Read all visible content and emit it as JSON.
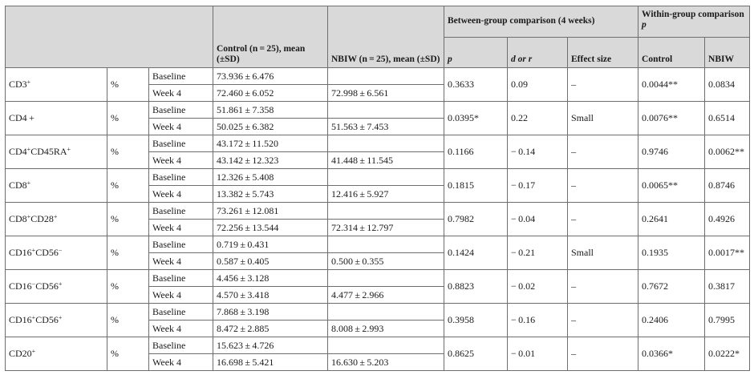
{
  "header": {
    "control": "Control (n = 25), mean (±SD)",
    "nbiw": "NBIW (n = 25), mean (±SD)",
    "between": "Between-group comparison (4 weeks)",
    "within": "Within-group comparison",
    "p": "p",
    "d_or": "d or",
    "r": "r",
    "effect_size": "Effect size",
    "within_p": "p",
    "within_control": "Control",
    "within_nbiw": "NBIW"
  },
  "rows": [
    {
      "marker": "CD3",
      "marker_sup": "+",
      "unit": "%",
      "baseline_label": "Baseline",
      "week4_label": "Week 4",
      "control_baseline": "73.936 ± 6.476",
      "control_week4": "72.460 ± 6.052",
      "nbiw_week4": "72.998 ± 6.561",
      "p": "0.3633",
      "d": "0.09",
      "effect": "–",
      "within_control": "0.0044**",
      "within_nbiw": "0.0834"
    },
    {
      "marker": "CD4 +",
      "marker_sup": "",
      "unit": "%",
      "baseline_label": "Baseline",
      "week4_label": "Week 4",
      "control_baseline": "51.861 ± 7.358",
      "control_week4": "50.025 ± 6.382",
      "nbiw_week4": "51.563 ± 7.453",
      "p": "0.0395*",
      "d": "0.22",
      "effect": "Small",
      "within_control": "0.0076**",
      "within_nbiw": "0.6514"
    },
    {
      "marker": "CD4",
      "marker_sup": "+",
      "marker2": "CD45RA",
      "marker2_sup": "+",
      "unit": "%",
      "baseline_label": "Baseline",
      "week4_label": "Week 4",
      "control_baseline": "43.172 ± 11.520",
      "control_week4": "43.142 ± 12.323",
      "nbiw_week4": "41.448 ± 11.545",
      "p": "0.1166",
      "d": "− 0.14",
      "effect": "–",
      "within_control": "0.9746",
      "within_nbiw": "0.0062**"
    },
    {
      "marker": "CD8",
      "marker_sup": "+",
      "unit": "%",
      "baseline_label": "Baseline",
      "week4_label": "Week 4",
      "control_baseline": "12.326 ± 5.408",
      "control_week4": "13.382 ± 5.743",
      "nbiw_week4": "12.416 ± 5.927",
      "p": "0.1815",
      "d": "− 0.17",
      "effect": "–",
      "within_control": "0.0065**",
      "within_nbiw": "0.8746"
    },
    {
      "marker": "CD8",
      "marker_sup": "+",
      "marker2": "CD28",
      "marker2_sup": "+",
      "unit": "%",
      "baseline_label": "Baseline",
      "week4_label": "Week 4",
      "control_baseline": "73.261 ± 12.081",
      "control_week4": "72.256 ± 13.544",
      "nbiw_week4": "72.314 ± 12.797",
      "p": "0.7982",
      "d": "− 0.04",
      "effect": "–",
      "within_control": "0.2641",
      "within_nbiw": "0.4926"
    },
    {
      "marker": "CD16",
      "marker_sup": "+",
      "marker2": "CD56",
      "marker2_sup": "−",
      "unit": "%",
      "baseline_label": "Baseline",
      "week4_label": "Week 4",
      "control_baseline": "0.719 ± 0.431",
      "control_week4": "0.587 ± 0.405",
      "nbiw_week4": "0.500 ± 0.355",
      "p": "0.1424",
      "d": "− 0.21",
      "effect": "Small",
      "within_control": "0.1935",
      "within_nbiw": "0.0017**"
    },
    {
      "marker": "CD16",
      "marker_sup": "−",
      "marker2": "CD56",
      "marker2_sup": "+",
      "unit": "%",
      "baseline_label": "Baseline",
      "week4_label": "Week 4",
      "control_baseline": "4.456 ± 3.128",
      "control_week4": "4.570 ± 3.418",
      "nbiw_week4": "4.477 ± 2.966",
      "p": "0.8823",
      "d": "− 0.02",
      "effect": "–",
      "within_control": "0.7672",
      "within_nbiw": "0.3817"
    },
    {
      "marker": "CD16",
      "marker_sup": "+",
      "marker2": "CD56",
      "marker2_sup": "+",
      "unit": "%",
      "baseline_label": "Baseline",
      "week4_label": "Week 4",
      "control_baseline": "7.868 ± 3.198",
      "control_week4": "8.472 ± 2.885",
      "nbiw_week4": "8.008 ± 2.993",
      "p": "0.3958",
      "d": "− 0.16",
      "effect": "–",
      "within_control": "0.2406",
      "within_nbiw": "0.7995"
    },
    {
      "marker": "CD20",
      "marker_sup": "+",
      "unit": "%",
      "baseline_label": "Baseline",
      "week4_label": "Week 4",
      "control_baseline": "15.623 ± 4.726",
      "control_week4": "16.698 ± 5.421",
      "nbiw_week4": "16.630 ± 5.203",
      "p": "0.8625",
      "d": "− 0.01",
      "effect": "–",
      "within_control": "0.0366*",
      "within_nbiw": "0.0222*"
    }
  ]
}
